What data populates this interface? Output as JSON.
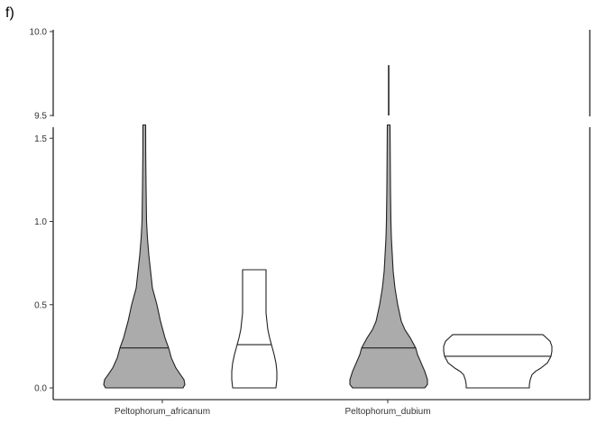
{
  "panel_tag": "f)",
  "chart_data": {
    "type": "violin",
    "categories": [
      "Peltophorum_africanum",
      "Peltophorum_dubium"
    ],
    "y_axis_break": {
      "lower_range": [
        0,
        1.58
      ],
      "upper_range": [
        9.5,
        10.0
      ]
    },
    "y_ticks_lower": [
      "0.0",
      "0.5",
      "1.0",
      "1.5"
    ],
    "y_ticks_upper": [
      "9.5",
      "10.0"
    ],
    "grid": false,
    "series": [
      {
        "fill": "#ababab",
        "violins": [
          {
            "category": "Peltophorum_africanum",
            "median": 0.24,
            "max": 1.58,
            "profile": [
              [
                0.0,
                43
              ],
              [
                0.02,
                45
              ],
              [
                0.05,
                44
              ],
              [
                0.08,
                40
              ],
              [
                0.12,
                35
              ],
              [
                0.18,
                30
              ],
              [
                0.24,
                27
              ],
              [
                0.3,
                23
              ],
              [
                0.4,
                18
              ],
              [
                0.5,
                14
              ],
              [
                0.6,
                9
              ],
              [
                0.7,
                7
              ],
              [
                0.8,
                5
              ],
              [
                0.9,
                3.5
              ],
              [
                1.0,
                2.5
              ],
              [
                1.2,
                2
              ],
              [
                1.4,
                1.6
              ],
              [
                1.58,
                1.5
              ]
            ]
          },
          {
            "category": "Peltophorum_dubium",
            "median": 0.24,
            "max": 9.8,
            "profile": [
              [
                0.0,
                40
              ],
              [
                0.02,
                43
              ],
              [
                0.05,
                43
              ],
              [
                0.1,
                40
              ],
              [
                0.15,
                36
              ],
              [
                0.2,
                32
              ],
              [
                0.24,
                30
              ],
              [
                0.3,
                24
              ],
              [
                0.35,
                18
              ],
              [
                0.4,
                14
              ],
              [
                0.5,
                10
              ],
              [
                0.6,
                7
              ],
              [
                0.7,
                5
              ],
              [
                0.8,
                4
              ],
              [
                0.9,
                3
              ],
              [
                1.0,
                2.5
              ],
              [
                1.2,
                2
              ],
              [
                1.58,
                1.5
              ]
            ]
          }
        ]
      },
      {
        "fill": "#ffffff",
        "violins": [
          {
            "category": "Peltophorum_africanum",
            "median": 0.26,
            "max": 0.71,
            "profile": [
              [
                0.0,
                24
              ],
              [
                0.05,
                25
              ],
              [
                0.1,
                25
              ],
              [
                0.15,
                24
              ],
              [
                0.2,
                22
              ],
              [
                0.26,
                19
              ],
              [
                0.3,
                17
              ],
              [
                0.35,
                15
              ],
              [
                0.4,
                14
              ],
              [
                0.45,
                13
              ],
              [
                0.5,
                13
              ],
              [
                0.55,
                13
              ],
              [
                0.6,
                13
              ],
              [
                0.65,
                13
              ],
              [
                0.71,
                13
              ]
            ]
          },
          {
            "category": "Peltophorum_dubium",
            "median": 0.19,
            "max": 0.32,
            "profile": [
              [
                0.0,
                35
              ],
              [
                0.02,
                35
              ],
              [
                0.05,
                36
              ],
              [
                0.08,
                38
              ],
              [
                0.1,
                42
              ],
              [
                0.12,
                48
              ],
              [
                0.15,
                55
              ],
              [
                0.19,
                59
              ],
              [
                0.22,
                60
              ],
              [
                0.25,
                60
              ],
              [
                0.28,
                58
              ],
              [
                0.3,
                54
              ],
              [
                0.32,
                50
              ]
            ]
          }
        ]
      }
    ]
  }
}
